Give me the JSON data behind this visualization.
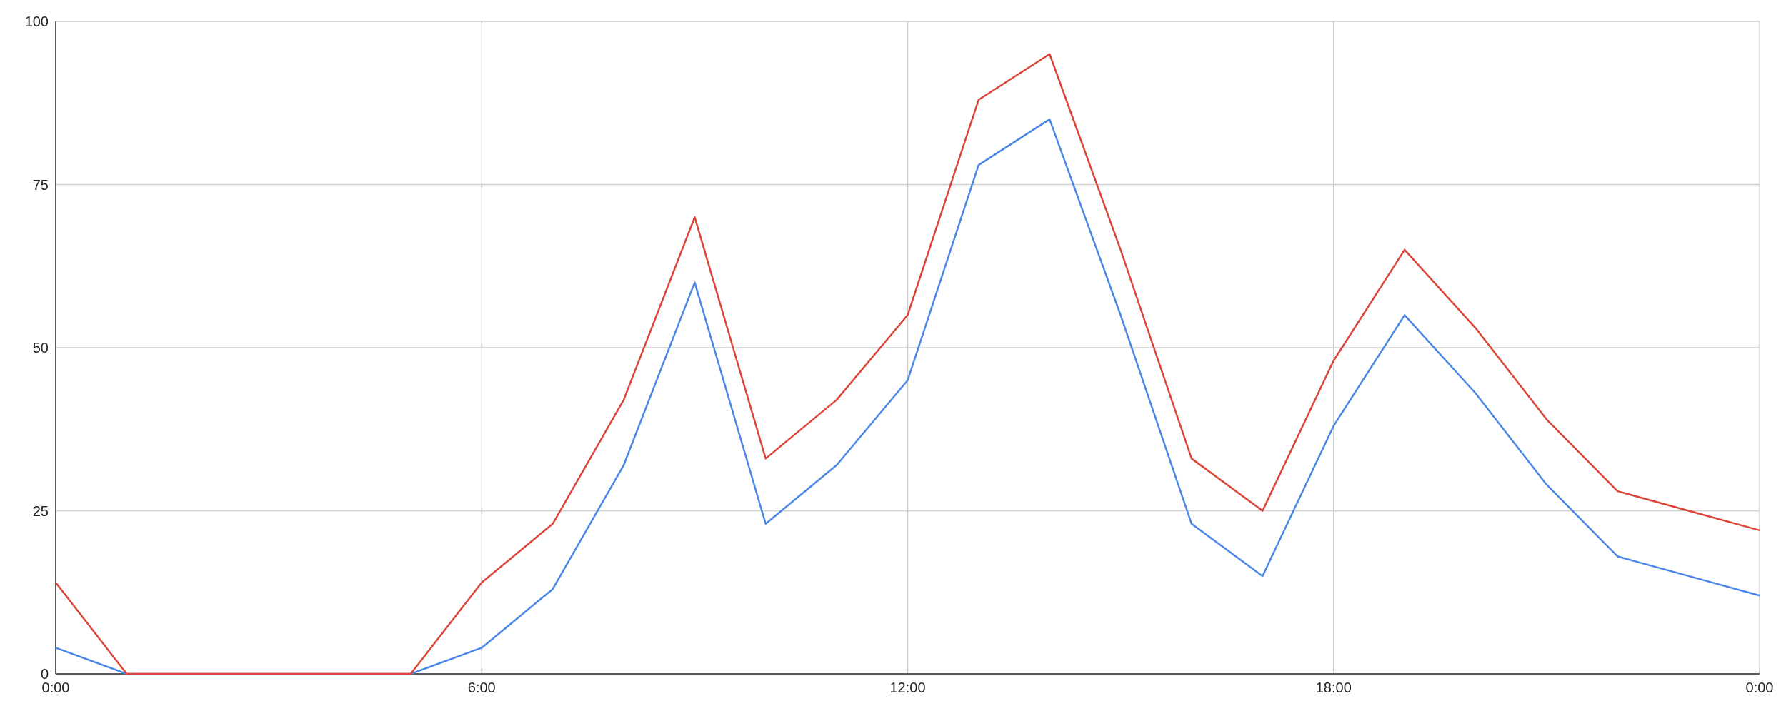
{
  "chart_data": {
    "type": "line",
    "x": [
      0,
      1,
      2,
      3,
      4,
      5,
      6,
      7,
      8,
      9,
      10,
      11,
      12,
      13,
      14,
      15,
      16,
      17,
      18,
      19,
      20,
      21,
      22,
      23,
      24
    ],
    "series": [
      {
        "color": "#4a86e8",
        "values": [
          4,
          0,
          0,
          0,
          0,
          0,
          4,
          13,
          32,
          60,
          23,
          32,
          45,
          78,
          85,
          55,
          23,
          15,
          38,
          55,
          43,
          29,
          18,
          15,
          12
        ]
      },
      {
        "color": "#db4437",
        "values": [
          14,
          0,
          0,
          0,
          0,
          0,
          14,
          23,
          42,
          70,
          33,
          42,
          55,
          88,
          95,
          65,
          33,
          25,
          48,
          65,
          53,
          39,
          28,
          25,
          22
        ]
      }
    ],
    "xlim": [
      0,
      24
    ],
    "xticks": [
      {
        "value": 0,
        "label": "0:00"
      },
      {
        "value": 6,
        "label": "6:00"
      },
      {
        "value": 12,
        "label": "12:00"
      },
      {
        "value": 18,
        "label": "18:00"
      },
      {
        "value": 24,
        "label": "0:00"
      }
    ],
    "ylim": [
      0,
      100
    ],
    "yticks": [
      0,
      25,
      50,
      75,
      100
    ],
    "grid": true,
    "marker": "none",
    "line_style": "solid"
  }
}
